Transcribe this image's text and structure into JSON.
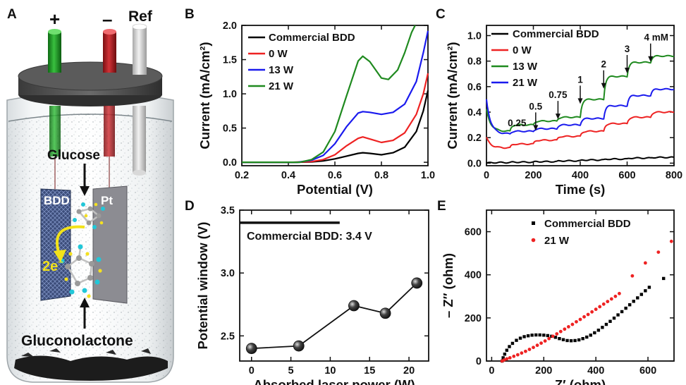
{
  "colors": {
    "black": "#000000",
    "red": "#ee2222",
    "blue": "#1a1aee",
    "green": "#1f8a1f"
  },
  "panel_a": {
    "letter": "A",
    "electrode_labels": {
      "plus": "+",
      "minus": "–",
      "ref": "Ref"
    },
    "plate_labels": {
      "left": "BDD",
      "right": "Pt"
    },
    "glucose_label": "Glucose",
    "electron_label": "2e",
    "electron_sup": "−",
    "product_label": "Gluconolactone"
  },
  "chart_data": [
    {
      "id": "B",
      "letter": "B",
      "type": "line",
      "xlabel": "Potential (V)",
      "ylabel": "Current (mA/cm²)",
      "xlim": [
        0.2,
        1.0
      ],
      "ylim": [
        -0.05,
        2.0
      ],
      "xticks": [
        0.2,
        0.4,
        0.6,
        0.8,
        1.0
      ],
      "xtick_labels": [
        "0.2",
        "0.4",
        "0.6",
        "0.8",
        "1.0"
      ],
      "yticks": [
        0.0,
        0.5,
        1.0,
        1.5,
        2.0
      ],
      "ytick_labels": [
        "0.0",
        "0.5",
        "1.0",
        "1.5",
        "2.0"
      ],
      "legend_position": "top-right",
      "series": [
        {
          "name": "Commercial BDD",
          "color": "#000000",
          "x": [
            0.42,
            0.5,
            0.55,
            0.6,
            0.65,
            0.7,
            0.72,
            0.75,
            0.8,
            0.85,
            0.9,
            0.95,
            0.98,
            1.0
          ],
          "y": [
            0.0,
            0.005,
            0.02,
            0.05,
            0.09,
            0.13,
            0.14,
            0.13,
            0.11,
            0.14,
            0.22,
            0.45,
            0.75,
            1.05
          ]
        },
        {
          "name": "0 W",
          "color": "#ee2222",
          "x": [
            0.42,
            0.5,
            0.55,
            0.6,
            0.65,
            0.7,
            0.72,
            0.76,
            0.8,
            0.85,
            0.9,
            0.95,
            0.98,
            1.0
          ],
          "y": [
            0.0,
            0.01,
            0.04,
            0.11,
            0.24,
            0.35,
            0.37,
            0.33,
            0.29,
            0.32,
            0.43,
            0.7,
            1.0,
            1.3
          ]
        },
        {
          "name": "13 W",
          "color": "#1a1aee",
          "x": [
            0.44,
            0.5,
            0.55,
            0.6,
            0.65,
            0.7,
            0.72,
            0.75,
            0.8,
            0.85,
            0.9,
            0.95,
            0.98,
            1.0
          ],
          "y": [
            0.0,
            0.03,
            0.1,
            0.27,
            0.52,
            0.72,
            0.74,
            0.73,
            0.7,
            0.73,
            0.85,
            1.18,
            1.6,
            1.92
          ]
        },
        {
          "name": "21 W",
          "color": "#1f8a1f",
          "x": [
            0.45,
            0.5,
            0.55,
            0.6,
            0.65,
            0.7,
            0.72,
            0.75,
            0.8,
            0.83,
            0.87,
            0.9,
            0.93,
            0.945
          ],
          "y": [
            0.0,
            0.04,
            0.15,
            0.45,
            0.97,
            1.48,
            1.55,
            1.47,
            1.23,
            1.21,
            1.35,
            1.6,
            1.9,
            2.0
          ]
        }
      ]
    },
    {
      "id": "C",
      "letter": "C",
      "type": "line",
      "xlabel": "Time (s)",
      "ylabel": "Current (mA/cm²)",
      "xlim": [
        0,
        800
      ],
      "ylim": [
        -0.02,
        1.08
      ],
      "xticks": [
        0,
        200,
        400,
        600,
        800
      ],
      "xtick_labels": [
        "0",
        "200",
        "400",
        "600",
        "800"
      ],
      "yticks": [
        0.0,
        0.2,
        0.4,
        0.6,
        0.8,
        1.0
      ],
      "ytick_labels": [
        "0.0",
        "0.2",
        "0.4",
        "0.6",
        "0.8",
        "1.0"
      ],
      "legend_position": "top-left",
      "steps": [
        100,
        200,
        300,
        400,
        500,
        600,
        700
      ],
      "step_labels": [
        "0.25",
        "0.5",
        "0.75",
        "1",
        "2",
        "3",
        "4 mM"
      ],
      "step_label_pos": [
        [
          100,
          0.29
        ],
        [
          210,
          0.42
        ],
        [
          305,
          0.51
        ],
        [
          400,
          0.63
        ],
        [
          500,
          0.75
        ],
        [
          600,
          0.87
        ],
        [
          700,
          0.96
        ]
      ],
      "series": [
        {
          "name": "Commercial BDD",
          "color": "#000000",
          "start": 0.0,
          "levels": [
            0.005,
            0.008,
            0.012,
            0.018,
            0.025,
            0.032,
            0.04,
            0.045
          ]
        },
        {
          "name": "0 W",
          "color": "#ee2222",
          "start": 0.2,
          "levels": [
            0.12,
            0.15,
            0.18,
            0.21,
            0.25,
            0.31,
            0.36,
            0.4
          ]
        },
        {
          "name": "13 W",
          "color": "#1f8a1f",
          "start": 0.42,
          "levels": [
            0.25,
            0.3,
            0.33,
            0.36,
            0.5,
            0.68,
            0.79,
            0.84
          ]
        },
        {
          "name": "21 W",
          "color": "#1a1aee",
          "start": 0.5,
          "levels": [
            0.23,
            0.25,
            0.27,
            0.3,
            0.35,
            0.45,
            0.53,
            0.58
          ]
        }
      ]
    },
    {
      "id": "D",
      "letter": "D",
      "type": "scatter",
      "xlabel": "Absorbed laser power (W)",
      "ylabel": "Potential window (V)",
      "xlim": [
        -1.5,
        22.5
      ],
      "ylim": [
        2.3,
        3.5
      ],
      "xticks": [
        0,
        5,
        10,
        15,
        20
      ],
      "xtick_labels": [
        "0",
        "5",
        "10",
        "15",
        "20"
      ],
      "yticks": [
        2.5,
        3.0,
        3.5
      ],
      "ytick_labels": [
        "2.5",
        "3.0",
        "3.5"
      ],
      "reference": {
        "label": "Commercial BDD: 3.4 V",
        "y": 3.4,
        "x_range": [
          -1.5,
          11.2
        ]
      },
      "x": [
        0,
        6,
        13,
        17,
        21
      ],
      "y": [
        2.4,
        2.42,
        2.74,
        2.68,
        2.92
      ]
    },
    {
      "id": "E",
      "letter": "E",
      "type": "scatter",
      "xlabel": "Z′ (ohm)",
      "ylabel": "– Z″ (ohm)",
      "xlim": [
        -20,
        700
      ],
      "ylim": [
        0,
        700
      ],
      "xticks": [
        0,
        200,
        400,
        600
      ],
      "xtick_labels": [
        "0",
        "200",
        "400",
        "600"
      ],
      "yticks": [
        0,
        200,
        400,
        600
      ],
      "ytick_labels": [
        "0",
        "200",
        "400",
        "600"
      ],
      "legend_position": "top-right",
      "series": [
        {
          "name": "Commercial BDD",
          "color": "#000000",
          "marker": "square",
          "x": [
            40,
            44,
            50,
            58,
            68,
            80,
            95,
            110,
            125,
            140,
            155,
            170,
            185,
            200,
            215,
            230,
            245,
            260,
            275,
            290,
            305,
            320,
            335,
            350,
            365,
            380,
            395,
            410,
            425,
            440,
            455,
            470,
            485,
            500,
            515,
            530,
            545,
            560,
            575,
            590,
            605,
            660
          ],
          "y": [
            0,
            15,
            32,
            50,
            67,
            82,
            96,
            106,
            113,
            117,
            120,
            121,
            121,
            120,
            118,
            115,
            110,
            104,
            99,
            95,
            94,
            95,
            98,
            104,
            111,
            120,
            131,
            143,
            156,
            170,
            184,
            199,
            214,
            229,
            245,
            261,
            277,
            293,
            309,
            326,
            342,
            383
          ]
        },
        {
          "name": "21 W",
          "color": "#ee2222",
          "marker": "circle",
          "x": [
            40,
            48,
            58,
            70,
            85,
            100,
            115,
            130,
            145,
            160,
            175,
            190,
            205,
            220,
            235,
            250,
            265,
            280,
            295,
            310,
            325,
            340,
            355,
            370,
            385,
            400,
            415,
            430,
            445,
            460,
            475,
            490,
            540,
            590,
            640,
            690
          ],
          "y": [
            0,
            5,
            10,
            15,
            22,
            29,
            37,
            45,
            54,
            63,
            73,
            83,
            93,
            104,
            115,
            126,
            137,
            148,
            159,
            170,
            182,
            193,
            205,
            216,
            228,
            240,
            252,
            264,
            276,
            288,
            300,
            313,
            395,
            455,
            505,
            555
          ]
        }
      ]
    }
  ]
}
